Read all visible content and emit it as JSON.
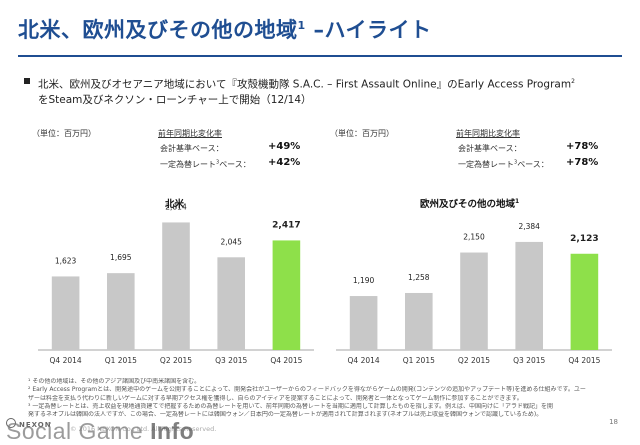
{
  "page": {
    "title": "北米、欧州及びその他の地域",
    "title_sup": "1",
    "title_suffix": " –ハイライト",
    "bullet_line1": "北米、欧州及びオセアニア地域において『攻殻機動隊 S.A.C. – First Assault Online』のEarly Access Program",
    "bullet_sup": "2",
    "bullet_line2": "をSteam及びネクソン・ローンチャー上で開始（12/14）",
    "page_number": "18",
    "logo": "NEXON",
    "copyright": "© 2016 NEXON Co., Ltd. All Rights Reserved.",
    "watermark_a": "Social Game ",
    "watermark_b": "Info"
  },
  "panels": [
    {
      "unit": "（単位：百万円）",
      "yoy_heading": "前年同期比変化率",
      "yoy_rows": [
        {
          "label": "会計基準ベース：",
          "value": "+49%"
        },
        {
          "label": "一定為替レート",
          "sup": "3",
          "label_end": "ベース：",
          "value": "+42%"
        }
      ],
      "chart_title": "北米",
      "chart_title_sup": ""
    },
    {
      "unit": "（単位：百万円）",
      "yoy_heading": "前年同期比変化率",
      "yoy_rows": [
        {
          "label": "会計基準ベース：",
          "value": "+78%"
        },
        {
          "label": "一定為替レート",
          "sup": "3",
          "label_end": "ベース：",
          "value": "+78%"
        }
      ],
      "chart_title": "欧州及びその他の地域",
      "chart_title_sup": "1"
    }
  ],
  "chart_data": [
    {
      "type": "bar",
      "title": "北米",
      "categories": [
        "Q4 2014",
        "Q1 2015",
        "Q2 2015",
        "Q3 2015",
        "Q4 2015"
      ],
      "values": [
        1623,
        1695,
        2814,
        2045,
        2417
      ],
      "labels": [
        "1,623",
        "1,695",
        "2,814",
        "2,045",
        "2,417"
      ],
      "highlight_index": 4,
      "colors": {
        "bar": "#c8c8c8",
        "highlight": "#8ee04a"
      },
      "ylim": [
        0,
        3000
      ]
    },
    {
      "type": "bar",
      "title": "欧州及びその他の地域",
      "categories": [
        "Q4 2014",
        "Q1 2015",
        "Q2 2015",
        "Q3 2015",
        "Q4 2015"
      ],
      "values": [
        1190,
        1258,
        2150,
        2384,
        2123
      ],
      "labels": [
        "1,190",
        "1,258",
        "2,150",
        "2,384",
        "2,123"
      ],
      "highlight_index": 4,
      "colors": {
        "bar": "#c8c8c8",
        "highlight": "#8ee04a"
      },
      "ylim": [
        0,
        3000
      ]
    }
  ],
  "footnotes": [
    "¹ その他の地域は、その他のアジア諸国及び中南米諸国を含む。",
    "² Early Access Programとは、開発途中のゲームを公開することによって、開発会社がユーザーからのフィードバックを得ながらゲームの開発(コンテンツの追加やアップデート等)を進める仕組みです。ユー",
    "   ザーは料金を支払う代わりに新しいゲームに対する早期アクセス権を獲得し、自らのアイディアを提案することによって、開発者と一体となってゲーム制作に参加することができます。",
    "³ 一定為替レートとは、売上収益を現地通貨建てで把握するための為替レートを用いて、前年同期の為替レートを当期に適用して計算したものを指します。例えば、中国向けに「アラド戦記」を開",
    "   発するネオプルは韓国の法人ですが、この場合、一定為替レートには韓国ウォン／日本円の一定為替レートが適用されて計算されます(ネオプルは売上収益を韓国ウォンで認識しているため)。"
  ]
}
